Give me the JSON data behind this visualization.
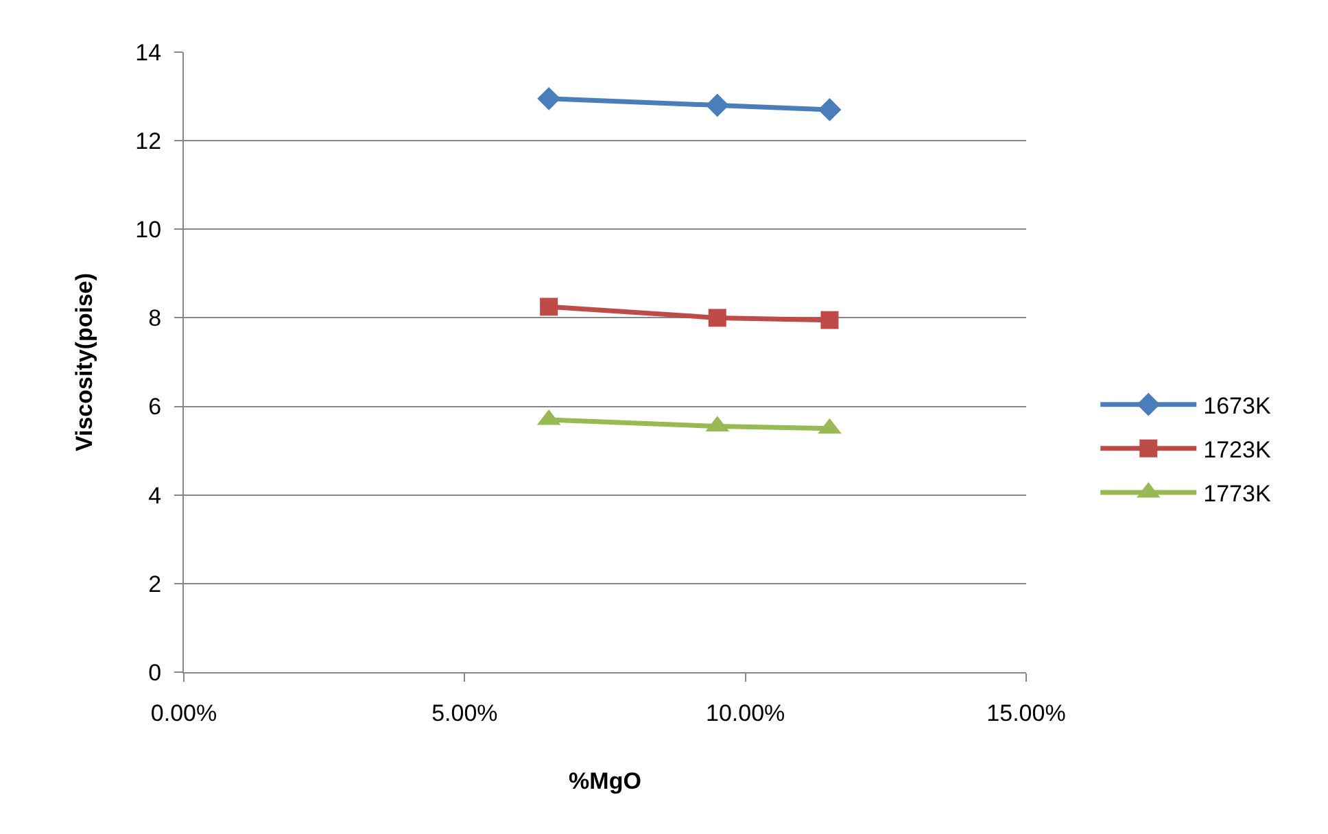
{
  "chart_data": {
    "type": "line",
    "xlabel": "%MgO",
    "ylabel": "Viscosity(poise)",
    "x": [
      0.065,
      0.095,
      0.115
    ],
    "series": [
      {
        "name": "1673K",
        "color": "#4a7ebb",
        "marker": "diamond",
        "values": [
          12.95,
          12.8,
          12.7
        ]
      },
      {
        "name": "1723K",
        "color": "#be4b48",
        "marker": "square",
        "values": [
          8.25,
          8.0,
          7.95
        ]
      },
      {
        "name": "1773K",
        "color": "#98b954",
        "marker": "triangle",
        "values": [
          5.7,
          5.55,
          5.5
        ]
      }
    ],
    "xlim": [
      0,
      0.15
    ],
    "xticks": [
      {
        "value": 0,
        "label": "0.00%"
      },
      {
        "value": 0.05,
        "label": "5.00%"
      },
      {
        "value": 0.1,
        "label": "10.00%"
      },
      {
        "value": 0.15,
        "label": "15.00%"
      }
    ],
    "ylim": [
      0,
      14
    ],
    "yticks": [
      0,
      2,
      4,
      6,
      8,
      10,
      12,
      14
    ],
    "grid": "y",
    "legend": "right",
    "line_style": "solid"
  }
}
